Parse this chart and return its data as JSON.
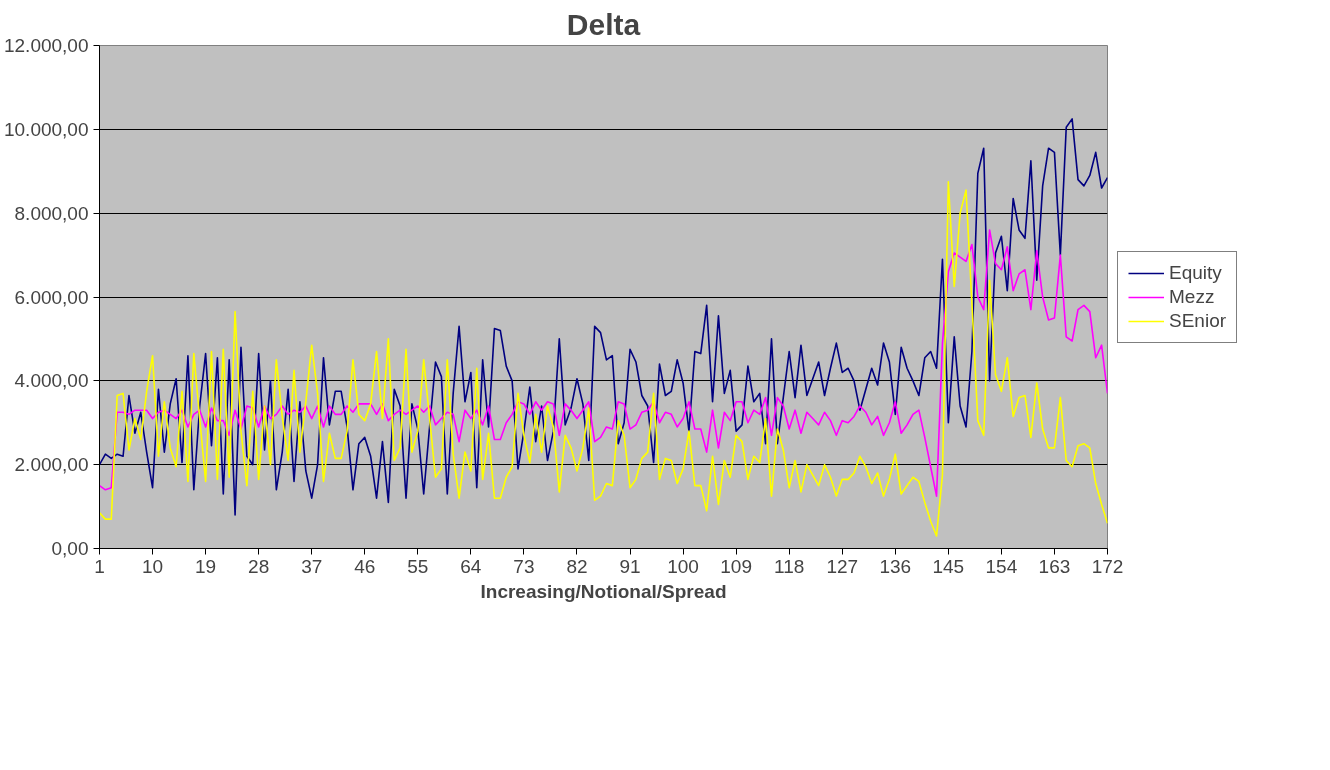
{
  "chart_data": {
    "type": "line",
    "title": "Delta",
    "xlabel": "Increasing/Notional/Spread",
    "x": [
      1,
      2,
      3,
      4,
      5,
      6,
      7,
      8,
      9,
      10,
      11,
      12,
      13,
      14,
      15,
      16,
      17,
      18,
      19,
      20,
      21,
      22,
      23,
      24,
      25,
      26,
      27,
      28,
      29,
      30,
      31,
      32,
      33,
      34,
      35,
      36,
      37,
      38,
      39,
      40,
      41,
      42,
      43,
      44,
      45,
      46,
      47,
      48,
      49,
      50,
      51,
      52,
      53,
      54,
      55,
      56,
      57,
      58,
      59,
      60,
      61,
      62,
      63,
      64,
      65,
      66,
      67,
      68,
      69,
      70,
      71,
      72,
      73,
      74,
      75,
      76,
      77,
      78,
      79,
      80,
      81,
      82,
      83,
      84,
      85,
      86,
      87,
      88,
      89,
      90,
      91,
      92,
      93,
      94,
      95,
      96,
      97,
      98,
      99,
      100,
      101,
      102,
      103,
      104,
      105,
      106,
      107,
      108,
      109,
      110,
      111,
      112,
      113,
      114,
      115,
      116,
      117,
      118,
      119,
      120,
      121,
      122,
      123,
      124,
      125,
      126,
      127,
      128,
      129,
      130,
      131,
      132,
      133,
      134,
      135,
      136,
      137,
      138,
      139,
      140,
      141,
      142,
      143,
      144,
      145,
      146,
      147,
      148,
      149,
      150,
      151,
      152,
      153,
      154,
      155,
      156,
      157,
      158,
      159,
      160,
      161,
      162,
      163,
      164,
      165,
      166,
      167,
      168,
      169,
      170,
      171,
      172
    ],
    "series": [
      {
        "name": "Equity",
        "color": "#000080",
        "values": [
          2000,
          2250,
          2150,
          2250,
          2200,
          3650,
          2750,
          3250,
          2300,
          1450,
          3800,
          2300,
          3450,
          4050,
          2050,
          4600,
          1400,
          3400,
          4650,
          2450,
          4550,
          1300,
          4500,
          800,
          4800,
          2200,
          2000,
          4650,
          2350,
          4000,
          1400,
          2300,
          3800,
          1600,
          3500,
          1850,
          1200,
          2000,
          4550,
          2950,
          3750,
          3750,
          2900,
          1400,
          2500,
          2650,
          2200,
          1200,
          2550,
          1100,
          3800,
          3400,
          1200,
          3450,
          2850,
          1300,
          2900,
          4450,
          4100,
          1300,
          3700,
          5300,
          3500,
          4200,
          1450,
          4500,
          2900,
          5250,
          5200,
          4350,
          4000,
          1900,
          2800,
          3850,
          2550,
          3400,
          2100,
          2800,
          5000,
          2950,
          3350,
          4050,
          3450,
          2100,
          5300,
          5150,
          4500,
          4600,
          2500,
          3000,
          4750,
          4450,
          3650,
          3400,
          2050,
          4400,
          3650,
          3750,
          4500,
          3950,
          2800,
          4700,
          4650,
          5800,
          3500,
          5550,
          3700,
          4250,
          2800,
          2950,
          4350,
          3500,
          3700,
          2500,
          5000,
          2500,
          3600,
          4700,
          3600,
          4850,
          3650,
          4050,
          4450,
          3650,
          4300,
          4900,
          4200,
          4300,
          4000,
          3300,
          3800,
          4300,
          3900,
          4900,
          4450,
          3200,
          4800,
          4300,
          4000,
          3650,
          4550,
          4700,
          4300,
          6900,
          3000,
          5050,
          3400,
          2900,
          4700,
          8950,
          9550,
          4000,
          7050,
          7450,
          6150,
          8350,
          7600,
          7400,
          9250,
          6400,
          8650,
          9550,
          9450,
          7000,
          10050,
          10250,
          8800,
          8650,
          8900,
          9450,
          8600,
          8850
        ]
      },
      {
        "name": "Mezz",
        "color": "#ff00ff",
        "values": [
          1500,
          1400,
          1450,
          3250,
          3250,
          3200,
          3300,
          3300,
          3300,
          3100,
          3250,
          3300,
          3200,
          3100,
          3300,
          2900,
          3200,
          3300,
          2900,
          3350,
          3050,
          3050,
          2700,
          3300,
          2850,
          3400,
          3350,
          2900,
          3400,
          3100,
          3200,
          3400,
          3200,
          3300,
          3250,
          3400,
          3100,
          3400,
          2900,
          3400,
          3200,
          3200,
          3400,
          3250,
          3450,
          3450,
          3450,
          3200,
          3450,
          3050,
          3200,
          3300,
          3200,
          3300,
          3400,
          3250,
          3400,
          2950,
          3100,
          3250,
          3200,
          2550,
          3300,
          3100,
          3300,
          2950,
          3400,
          2600,
          2600,
          3000,
          3200,
          3500,
          3450,
          3200,
          3500,
          3300,
          3500,
          3450,
          2700,
          3450,
          3300,
          3100,
          3300,
          3500,
          2550,
          2650,
          2900,
          2850,
          3500,
          3450,
          2850,
          2950,
          3250,
          3300,
          3500,
          3000,
          3250,
          3200,
          2900,
          3100,
          3500,
          2850,
          2850,
          2300,
          3300,
          2400,
          3250,
          3050,
          3500,
          3500,
          3000,
          3300,
          3200,
          3600,
          2700,
          3600,
          3400,
          2850,
          3300,
          2750,
          3250,
          3100,
          2950,
          3250,
          3050,
          2700,
          3050,
          3000,
          3150,
          3400,
          3250,
          2950,
          3150,
          2700,
          3000,
          3500,
          2750,
          2950,
          3200,
          3300,
          2650,
          1950,
          1250,
          4900,
          6600,
          7050,
          6950,
          6850,
          7250,
          6000,
          5700,
          7600,
          6800,
          6650,
          7200,
          6150,
          6550,
          6650,
          5700,
          7100,
          6000,
          5450,
          5500,
          7000,
          5050,
          4950,
          5700,
          5800,
          5650,
          4550,
          4850,
          3700
        ]
      },
      {
        "name": "SEnior",
        "color": "#ffff00",
        "values": [
          850,
          700,
          700,
          3650,
          3700,
          2350,
          3100,
          2600,
          3750,
          4600,
          2200,
          3500,
          2400,
          1950,
          3750,
          1600,
          4650,
          3100,
          1600,
          4700,
          1650,
          4750,
          1700,
          5650,
          2800,
          1500,
          3750,
          1650,
          3400,
          2000,
          4500,
          3150,
          2100,
          4250,
          2300,
          3500,
          4850,
          3700,
          1600,
          2750,
          2150,
          2150,
          2800,
          4500,
          3200,
          3050,
          3450,
          4700,
          3100,
          5000,
          2100,
          2400,
          4750,
          2300,
          2800,
          4500,
          3100,
          1700,
          1900,
          4500,
          2250,
          1200,
          2300,
          1850,
          4300,
          1650,
          2750,
          1200,
          1200,
          1700,
          1950,
          3700,
          2700,
          2050,
          3200,
          2300,
          3400,
          2900,
          1350,
          2700,
          2400,
          1850,
          2400,
          3350,
          1150,
          1250,
          1550,
          1500,
          3050,
          2700,
          1450,
          1650,
          2150,
          2300,
          3700,
          1650,
          2150,
          2100,
          1550,
          1900,
          2800,
          1500,
          1500,
          900,
          2200,
          1050,
          2100,
          1700,
          2700,
          2550,
          1650,
          2200,
          2050,
          3100,
          1250,
          2850,
          2350,
          1450,
          2100,
          1350,
          2000,
          1750,
          1500,
          2000,
          1700,
          1250,
          1650,
          1650,
          1800,
          2200,
          1950,
          1550,
          1800,
          1250,
          1650,
          2250,
          1300,
          1500,
          1700,
          1600,
          1100,
          650,
          300,
          1750,
          8750,
          6250,
          8000,
          8550,
          5850,
          3050,
          2700,
          6400,
          4150,
          3750,
          4550,
          3150,
          3600,
          3650,
          2650,
          3950,
          2850,
          2400,
          2400,
          3600,
          2100,
          1950,
          2450,
          2500,
          2400,
          1550,
          1050,
          600
        ]
      }
    ],
    "xlim": [
      1,
      172
    ],
    "xticks": [
      1,
      10,
      19,
      28,
      37,
      46,
      55,
      64,
      73,
      82,
      91,
      100,
      109,
      118,
      127,
      136,
      145,
      154,
      163,
      172
    ],
    "ylim": [
      0,
      12000
    ],
    "yticks": [
      {
        "value": 0,
        "label": "0,00"
      },
      {
        "value": 2000,
        "label": "2.000,00"
      },
      {
        "value": 4000,
        "label": "4.000,00"
      },
      {
        "value": 6000,
        "label": "6.000,00"
      },
      {
        "value": 8000,
        "label": "8.000,00"
      },
      {
        "value": 10000,
        "label": "10.000,00"
      },
      {
        "value": 12000,
        "label": "12.000,00"
      }
    ],
    "grid": "y",
    "legend": "right",
    "marker": "none",
    "line_style": "solid"
  }
}
